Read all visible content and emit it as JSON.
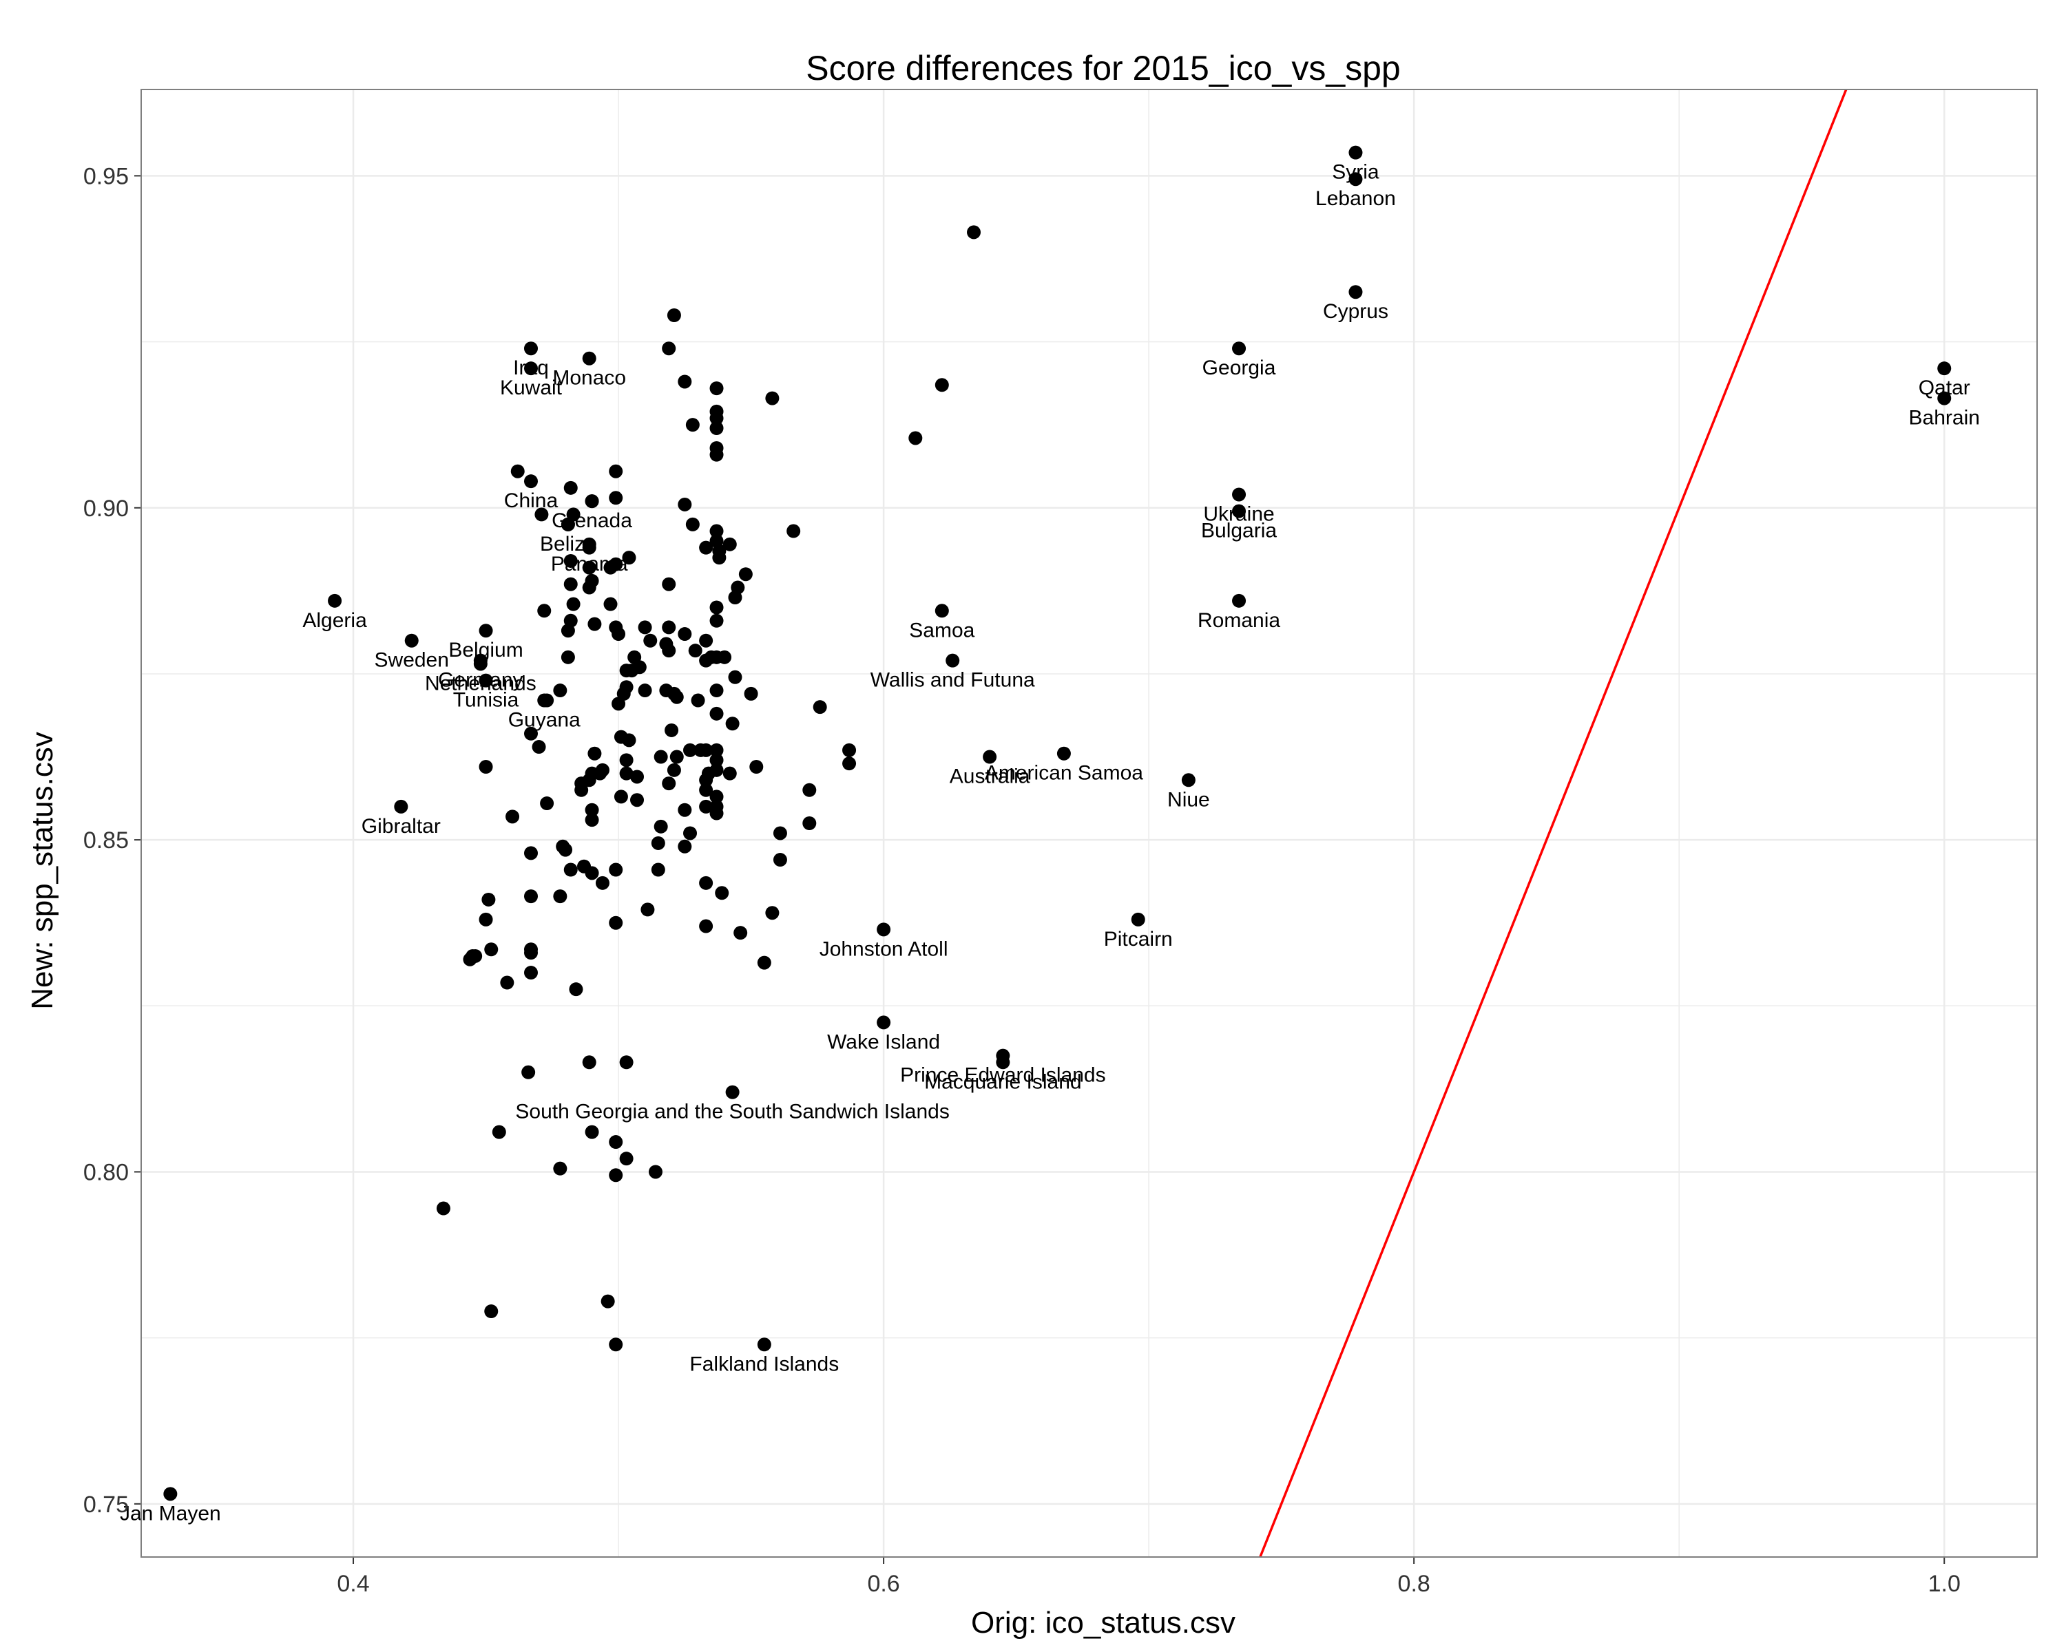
{
  "chart_data": {
    "type": "scatter",
    "title": "Score differences for 2015_ico_vs_spp",
    "xlabel": "Orig: ico_status.csv",
    "ylabel": "New: spp_status.csv",
    "xlim": [
      0.32,
      1.035
    ],
    "ylim": [
      0.742,
      0.963
    ],
    "xticks": [
      0.4,
      0.6,
      0.8,
      1.0
    ],
    "xtick_labels": [
      "0.4",
      "0.6",
      "0.8",
      "1.0"
    ],
    "yticks": [
      0.75,
      0.8,
      0.85,
      0.9,
      0.95
    ],
    "ytick_labels": [
      "0.75",
      "0.80",
      "0.85",
      "0.90",
      "0.95"
    ],
    "grid": true,
    "colors": {
      "point": "#000000",
      "reference_line": "#ff0000",
      "grid": "#ebebeb",
      "panel_border": "#7f7f7f"
    },
    "reference_line": {
      "slope": 1,
      "intercept": 0
    },
    "labeled_points": [
      {
        "label": "Syria",
        "x": 0.778,
        "y": 0.9535
      },
      {
        "label": "Lebanon",
        "x": 0.778,
        "y": 0.9495
      },
      {
        "label": "Cyprus",
        "x": 0.778,
        "y": 0.9325
      },
      {
        "label": "Georgia",
        "x": 0.734,
        "y": 0.924
      },
      {
        "label": "Qatar",
        "x": 1.0,
        "y": 0.921
      },
      {
        "label": "Bahrain",
        "x": 1.0,
        "y": 0.9165
      },
      {
        "label": "Ukraine",
        "x": 0.734,
        "y": 0.902
      },
      {
        "label": "Bulgaria",
        "x": 0.734,
        "y": 0.8995
      },
      {
        "label": "Romania",
        "x": 0.734,
        "y": 0.886
      },
      {
        "label": "Iraq",
        "x": 0.467,
        "y": 0.924
      },
      {
        "label": "Kuwait",
        "x": 0.467,
        "y": 0.921
      },
      {
        "label": "Monaco",
        "x": 0.489,
        "y": 0.9225
      },
      {
        "label": "China",
        "x": 0.467,
        "y": 0.904
      },
      {
        "label": "Belize",
        "x": 0.481,
        "y": 0.8975
      },
      {
        "label": "Grenada",
        "x": 0.49,
        "y": 0.901
      },
      {
        "label": "Panama",
        "x": 0.489,
        "y": 0.8945
      },
      {
        "label": "Algeria",
        "x": 0.393,
        "y": 0.886
      },
      {
        "label": "Belgium",
        "x": 0.45,
        "y": 0.8815
      },
      {
        "label": "Germany",
        "x": 0.448,
        "y": 0.877
      },
      {
        "label": "Sweden",
        "x": 0.422,
        "y": 0.88
      },
      {
        "label": "Tunisia",
        "x": 0.45,
        "y": 0.874
      },
      {
        "label": "Netherlands",
        "x": 0.448,
        "y": 0.8765
      },
      {
        "label": "Guyana",
        "x": 0.472,
        "y": 0.871
      },
      {
        "label": "Samoa",
        "x": 0.622,
        "y": 0.8845
      },
      {
        "label": "Wallis and Futuna",
        "x": 0.626,
        "y": 0.877
      },
      {
        "label": "Australia",
        "x": 0.64,
        "y": 0.8625
      },
      {
        "label": "American Samoa",
        "x": 0.668,
        "y": 0.863
      },
      {
        "label": "Niue",
        "x": 0.715,
        "y": 0.859
      },
      {
        "label": "Gibraltar",
        "x": 0.418,
        "y": 0.855
      },
      {
        "label": "Pitcairn",
        "x": 0.696,
        "y": 0.838
      },
      {
        "label": "Johnston Atoll",
        "x": 0.6,
        "y": 0.8365
      },
      {
        "label": "Wake Island",
        "x": 0.6,
        "y": 0.8225
      },
      {
        "label": "South Georgia and the South Sandwich Islands",
        "x": 0.543,
        "y": 0.812
      },
      {
        "label": "Prince Edward Islands",
        "x": 0.645,
        "y": 0.8175
      },
      {
        "label": "Macquarie Island",
        "x": 0.645,
        "y": 0.8165
      },
      {
        "label": "Falkland Islands",
        "x": 0.555,
        "y": 0.774
      },
      {
        "label": "Jan Mayen",
        "x": 0.331,
        "y": 0.7515
      }
    ],
    "points": [
      [
        0.634,
        0.9415
      ],
      [
        0.521,
        0.929
      ],
      [
        0.519,
        0.924
      ],
      [
        0.525,
        0.919
      ],
      [
        0.537,
        0.918
      ],
      [
        0.558,
        0.9165
      ],
      [
        0.537,
        0.9145
      ],
      [
        0.537,
        0.9135
      ],
      [
        0.528,
        0.9125
      ],
      [
        0.537,
        0.912
      ],
      [
        0.537,
        0.909
      ],
      [
        0.537,
        0.908
      ],
      [
        0.622,
        0.9185
      ],
      [
        0.612,
        0.9105
      ],
      [
        0.462,
        0.9055
      ],
      [
        0.499,
        0.9055
      ],
      [
        0.482,
        0.903
      ],
      [
        0.499,
        0.9015
      ],
      [
        0.471,
        0.899
      ],
      [
        0.483,
        0.899
      ],
      [
        0.49,
        0.901
      ],
      [
        0.525,
        0.9005
      ],
      [
        0.528,
        0.8975
      ],
      [
        0.537,
        0.8965
      ],
      [
        0.566,
        0.8965
      ],
      [
        0.481,
        0.8975
      ],
      [
        0.489,
        0.894
      ],
      [
        0.537,
        0.895
      ],
      [
        0.542,
        0.8945
      ],
      [
        0.533,
        0.894
      ],
      [
        0.504,
        0.8925
      ],
      [
        0.482,
        0.892
      ],
      [
        0.489,
        0.891
      ],
      [
        0.497,
        0.891
      ],
      [
        0.499,
        0.8915
      ],
      [
        0.538,
        0.8935
      ],
      [
        0.538,
        0.8925
      ],
      [
        0.548,
        0.89
      ],
      [
        0.545,
        0.888
      ],
      [
        0.519,
        0.8885
      ],
      [
        0.482,
        0.8885
      ],
      [
        0.489,
        0.888
      ],
      [
        0.544,
        0.8865
      ],
      [
        0.49,
        0.889
      ],
      [
        0.483,
        0.8855
      ],
      [
        0.497,
        0.8855
      ],
      [
        0.537,
        0.885
      ],
      [
        0.537,
        0.883
      ],
      [
        0.472,
        0.8845
      ],
      [
        0.482,
        0.883
      ],
      [
        0.481,
        0.8815
      ],
      [
        0.491,
        0.8825
      ],
      [
        0.499,
        0.882
      ],
      [
        0.51,
        0.882
      ],
      [
        0.519,
        0.882
      ],
      [
        0.525,
        0.881
      ],
      [
        0.5,
        0.881
      ],
      [
        0.512,
        0.88
      ],
      [
        0.518,
        0.8795
      ],
      [
        0.533,
        0.88
      ],
      [
        0.519,
        0.8785
      ],
      [
        0.529,
        0.8785
      ],
      [
        0.537,
        0.8775
      ],
      [
        0.54,
        0.8775
      ],
      [
        0.535,
        0.8775
      ],
      [
        0.506,
        0.8775
      ],
      [
        0.481,
        0.8775
      ],
      [
        0.508,
        0.876
      ],
      [
        0.503,
        0.8755
      ],
      [
        0.505,
        0.8755
      ],
      [
        0.533,
        0.877
      ],
      [
        0.544,
        0.8745
      ],
      [
        0.478,
        0.8725
      ],
      [
        0.503,
        0.873
      ],
      [
        0.502,
        0.872
      ],
      [
        0.51,
        0.8725
      ],
      [
        0.518,
        0.8725
      ],
      [
        0.521,
        0.872
      ],
      [
        0.537,
        0.8725
      ],
      [
        0.55,
        0.872
      ],
      [
        0.53,
        0.871
      ],
      [
        0.473,
        0.871
      ],
      [
        0.5,
        0.8705
      ],
      [
        0.522,
        0.8715
      ],
      [
        0.537,
        0.869
      ],
      [
        0.543,
        0.8675
      ],
      [
        0.576,
        0.87
      ],
      [
        0.467,
        0.866
      ],
      [
        0.52,
        0.8665
      ],
      [
        0.501,
        0.8655
      ],
      [
        0.504,
        0.865
      ],
      [
        0.47,
        0.864
      ],
      [
        0.533,
        0.8635
      ],
      [
        0.527,
        0.8635
      ],
      [
        0.537,
        0.8635
      ],
      [
        0.537,
        0.862
      ],
      [
        0.531,
        0.8635
      ],
      [
        0.516,
        0.8625
      ],
      [
        0.522,
        0.8625
      ],
      [
        0.503,
        0.862
      ],
      [
        0.491,
        0.863
      ],
      [
        0.45,
        0.861
      ],
      [
        0.552,
        0.861
      ],
      [
        0.537,
        0.8605
      ],
      [
        0.534,
        0.86
      ],
      [
        0.521,
        0.8605
      ],
      [
        0.542,
        0.86
      ],
      [
        0.494,
        0.8605
      ],
      [
        0.49,
        0.86
      ],
      [
        0.503,
        0.86
      ],
      [
        0.507,
        0.8595
      ],
      [
        0.493,
        0.86
      ],
      [
        0.489,
        0.859
      ],
      [
        0.486,
        0.8575
      ],
      [
        0.486,
        0.8585
      ],
      [
        0.533,
        0.859
      ],
      [
        0.533,
        0.8575
      ],
      [
        0.519,
        0.8585
      ],
      [
        0.537,
        0.8565
      ],
      [
        0.537,
        0.855
      ],
      [
        0.507,
        0.856
      ],
      [
        0.501,
        0.8565
      ],
      [
        0.525,
        0.8545
      ],
      [
        0.533,
        0.855
      ],
      [
        0.537,
        0.854
      ],
      [
        0.572,
        0.8575
      ],
      [
        0.587,
        0.8635
      ],
      [
        0.587,
        0.8615
      ],
      [
        0.572,
        0.8525
      ],
      [
        0.561,
        0.851
      ],
      [
        0.561,
        0.847
      ],
      [
        0.473,
        0.8555
      ],
      [
        0.49,
        0.8545
      ],
      [
        0.49,
        0.853
      ],
      [
        0.46,
        0.8535
      ],
      [
        0.516,
        0.852
      ],
      [
        0.527,
        0.851
      ],
      [
        0.515,
        0.8495
      ],
      [
        0.525,
        0.849
      ],
      [
        0.479,
        0.849
      ],
      [
        0.48,
        0.8485
      ],
      [
        0.467,
        0.848
      ],
      [
        0.487,
        0.846
      ],
      [
        0.482,
        0.8455
      ],
      [
        0.499,
        0.8455
      ],
      [
        0.49,
        0.845
      ],
      [
        0.515,
        0.8455
      ],
      [
        0.494,
        0.8435
      ],
      [
        0.533,
        0.8435
      ],
      [
        0.539,
        0.842
      ],
      [
        0.451,
        0.841
      ],
      [
        0.467,
        0.8415
      ],
      [
        0.478,
        0.8415
      ],
      [
        0.45,
        0.838
      ],
      [
        0.511,
        0.8395
      ],
      [
        0.558,
        0.839
      ],
      [
        0.499,
        0.8375
      ],
      [
        0.533,
        0.837
      ],
      [
        0.546,
        0.836
      ],
      [
        0.452,
        0.8335
      ],
      [
        0.467,
        0.8335
      ],
      [
        0.467,
        0.833
      ],
      [
        0.445,
        0.8325
      ],
      [
        0.444,
        0.832
      ],
      [
        0.446,
        0.8325
      ],
      [
        0.555,
        0.8315
      ],
      [
        0.467,
        0.83
      ],
      [
        0.458,
        0.8285
      ],
      [
        0.484,
        0.8275
      ],
      [
        0.466,
        0.815
      ],
      [
        0.489,
        0.8165
      ],
      [
        0.503,
        0.8165
      ],
      [
        0.455,
        0.806
      ],
      [
        0.49,
        0.806
      ],
      [
        0.499,
        0.8045
      ],
      [
        0.503,
        0.802
      ],
      [
        0.514,
        0.8
      ],
      [
        0.499,
        0.7995
      ],
      [
        0.478,
        0.8005
      ],
      [
        0.434,
        0.7945
      ],
      [
        0.496,
        0.7805
      ],
      [
        0.452,
        0.779
      ],
      [
        0.499,
        0.774
      ]
    ]
  }
}
